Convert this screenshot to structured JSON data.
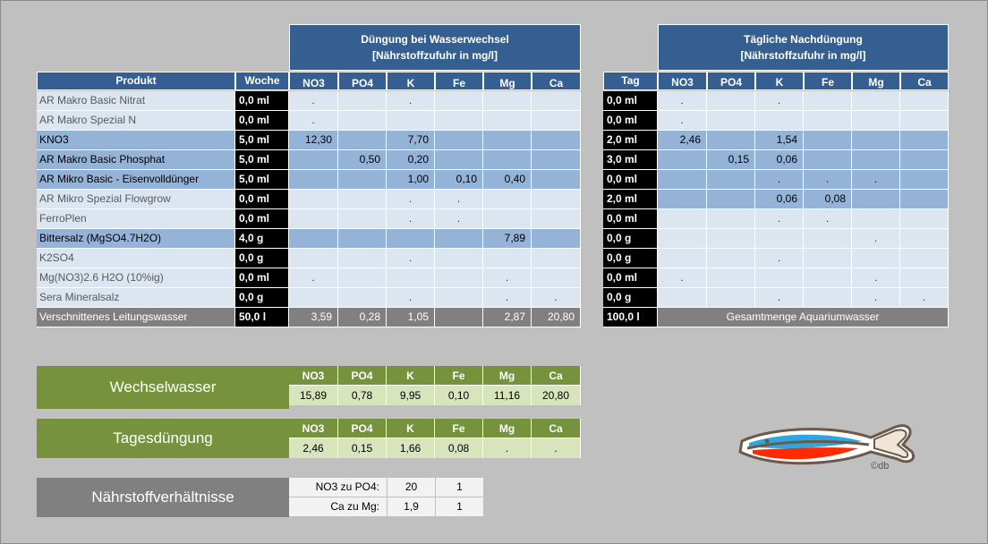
{
  "weekly_section": {
    "title_line1": "Düngung bei Wasserwechsel",
    "title_line2": "[Nährstoffzufuhr in mg/l]",
    "col_headers": [
      "Produkt",
      "Woche",
      "NO3",
      "PO4",
      "K",
      "Fe",
      "Mg",
      "Ca"
    ]
  },
  "daily_section": {
    "title_line1": "Tägliche Nachdüngung",
    "title_line2": "[Nährstoffzufuhr in mg/l]",
    "col_headers": [
      "Tag",
      "NO3",
      "PO4",
      "K",
      "Fe",
      "Mg",
      "Ca"
    ]
  },
  "products": [
    {
      "name": "AR Makro Basic Nitrat",
      "style": "light",
      "woche": "0,0 ml",
      "w": [
        ".",
        "",
        ".",
        "",
        "",
        ""
      ],
      "tag": "0,0 ml",
      "d": [
        ".",
        "",
        ".",
        "",
        "",
        ""
      ]
    },
    {
      "name": "AR Makro Spezial N",
      "style": "light",
      "woche": "0,0 ml",
      "w": [
        ".",
        "",
        "",
        "",
        "",
        ""
      ],
      "tag": "0,0 ml",
      "d": [
        ".",
        "",
        "",
        "",
        "",
        ""
      ]
    },
    {
      "name": "KNO3",
      "style": "dark",
      "woche": "5,0 ml",
      "w": [
        "12,30",
        "",
        "7,70",
        "",
        "",
        ""
      ],
      "tag": "2,0 ml",
      "d": [
        "2,46",
        "",
        "1,54",
        "",
        "",
        ""
      ]
    },
    {
      "name": "AR Makro Basic Phosphat",
      "style": "dark",
      "woche": "5,0 ml",
      "w": [
        "",
        "0,50",
        "0,20",
        "",
        "",
        ""
      ],
      "tag": "3,0 ml",
      "d": [
        "",
        "0,15",
        "0,06",
        "",
        "",
        ""
      ]
    },
    {
      "name": "AR Mikro Basic - Eisenvolldünger",
      "style": "dark",
      "woche": "5,0 ml",
      "w": [
        "",
        "",
        "1,00",
        "0,10",
        "0,40",
        ""
      ],
      "tag": "0,0 ml",
      "d": [
        "",
        "",
        ".",
        ".",
        ".",
        ""
      ]
    },
    {
      "name": "AR Mikro Spezial Flowgrow",
      "style": "light",
      "woche": "0,0 ml",
      "w": [
        "",
        "",
        ".",
        ".",
        "",
        ""
      ],
      "tag": "2,0 ml",
      "d": [
        "",
        "",
        "0,06",
        "0,08",
        "",
        ""
      ],
      "dstyle": "dark"
    },
    {
      "name": "FerroPlen",
      "style": "light",
      "woche": "0,0 ml",
      "w": [
        "",
        "",
        ".",
        ".",
        "",
        ""
      ],
      "tag": "0,0 ml",
      "d": [
        "",
        "",
        ".",
        ".",
        "",
        ""
      ]
    },
    {
      "name": "Bittersalz (MgSO4.7H2O)",
      "style": "dark",
      "woche": "4,0 g",
      "w": [
        "",
        "",
        "",
        "",
        "7,89",
        ""
      ],
      "tag": "0,0 g",
      "d": [
        "",
        "",
        "",
        "",
        ".",
        ""
      ],
      "dstyle": "light"
    },
    {
      "name": "K2SO4",
      "style": "light",
      "woche": "0,0 g",
      "w": [
        "",
        "",
        ".",
        "",
        "",
        ""
      ],
      "tag": "0,0 g",
      "d": [
        "",
        "",
        ".",
        "",
        "",
        ""
      ]
    },
    {
      "name": "Mg(NO3)2.6 H2O (10%ig)",
      "style": "light",
      "woche": "0,0 ml",
      "w": [
        ".",
        "",
        "",
        "",
        ".",
        ""
      ],
      "tag": "0,0 ml",
      "d": [
        ".",
        "",
        "",
        "",
        ".",
        ""
      ]
    },
    {
      "name": "Sera Mineralsalz",
      "style": "light",
      "woche": "0,0 g",
      "w": [
        "",
        "",
        ".",
        "",
        ".",
        "."
      ],
      "tag": "0,0 g",
      "d": [
        "",
        "",
        ".",
        "",
        ".",
        "."
      ]
    }
  ],
  "water_row": {
    "name": "Verschnittenes Leitungswasser",
    "woche": "50,0 l",
    "w": [
      "3,59",
      "0,28",
      "1,05",
      "",
      "2,87",
      "20,80"
    ],
    "tag": "100,0 l",
    "daily_label": "Gesamtmenge Aquariumwasser"
  },
  "wechselwasser": {
    "title": "Wechselwasser",
    "headers": [
      "NO3",
      "PO4",
      "K",
      "Fe",
      "Mg",
      "Ca"
    ],
    "values": [
      "15,89",
      "0,78",
      "9,95",
      "0,10",
      "11,16",
      "20,80"
    ]
  },
  "tagesduengung": {
    "title": "Tagesdüngung",
    "headers": [
      "NO3",
      "PO4",
      "K",
      "Fe",
      "Mg",
      "Ca"
    ],
    "values": [
      "2,46",
      "0,15",
      "1,66",
      "0,08",
      ".",
      "."
    ]
  },
  "ratios": {
    "title": "Nährstoffverhältnisse",
    "rows": [
      {
        "label": "NO3 zu PO4:",
        "a": "20",
        "b": "1"
      },
      {
        "label": "Ca zu Mg:",
        "a": "1,9",
        "b": "1"
      }
    ]
  },
  "logo": {
    "icon": "fish-logo-icon",
    "credit": "©db"
  },
  "colors": {
    "header_blue": "#365f91",
    "row_light": "#dce6f1",
    "row_dark": "#95b3d7",
    "green": "#76923c",
    "green_light": "#d7e4bc"
  }
}
